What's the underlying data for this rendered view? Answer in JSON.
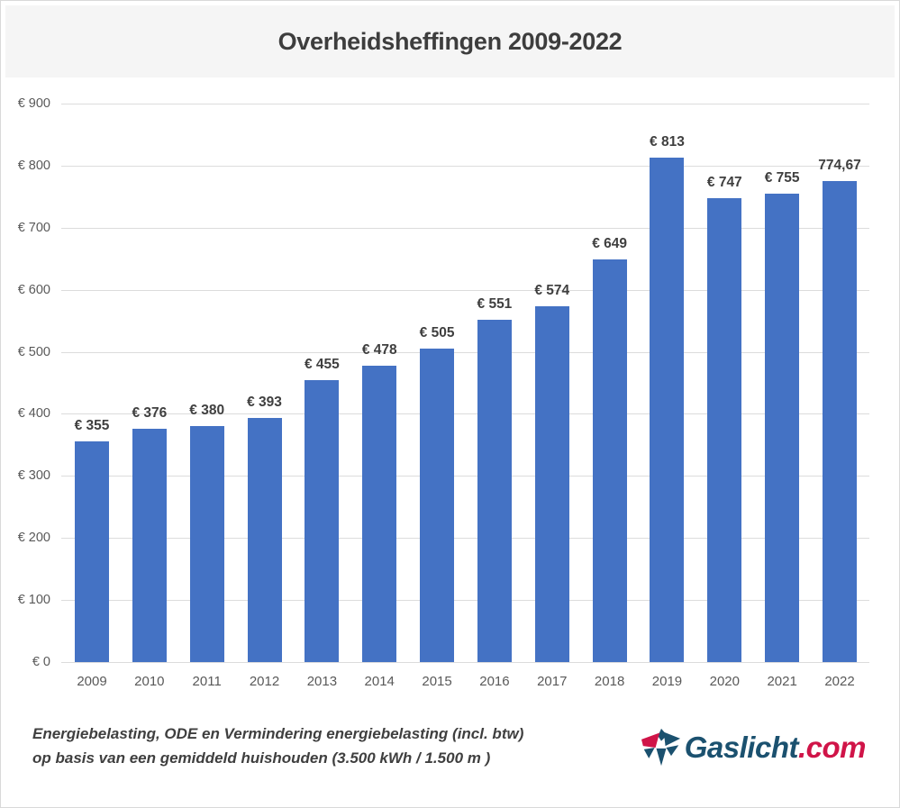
{
  "page": {
    "title": "Overheidsheffingen 2009-2022"
  },
  "chart_data": {
    "type": "bar",
    "title": "Overheidsheffingen 2009-2022",
    "categories": [
      "2009",
      "2010",
      "2011",
      "2012",
      "2013",
      "2014",
      "2015",
      "2016",
      "2017",
      "2018",
      "2019",
      "2020",
      "2021",
      "2022"
    ],
    "values": [
      355,
      376,
      380,
      393,
      455,
      478,
      505,
      551,
      574,
      649,
      813,
      747,
      755,
      774.67
    ],
    "bar_labels": [
      "€ 355",
      "€ 376",
      "€ 380",
      "€ 393",
      "€ 455",
      "€ 478",
      "€ 505",
      "€ 551",
      "€ 574",
      "€ 649",
      "€ 813",
      "€ 747",
      "€ 755",
      "774,67"
    ],
    "y_tick_values": [
      0,
      100,
      200,
      300,
      400,
      500,
      600,
      700,
      800,
      900
    ],
    "y_tick_labels": [
      "€ 0",
      "€ 100",
      "€ 200",
      "€ 300",
      "€ 400",
      "€ 500",
      "€ 600",
      "€ 700",
      "€ 800",
      "€ 900"
    ],
    "xlabel": "",
    "ylabel": "",
    "ylim": [
      0,
      900
    ],
    "grid": true,
    "legend": false,
    "bar_color": "#4472c4"
  },
  "footer": {
    "line1": "Energiebelasting, ODE en Vermindering energiebelasting (incl. btw)",
    "line2": "op basis van een gemiddeld huishouden (3.500 kWh / 1.500 m )"
  },
  "logo": {
    "name": "Gaslicht",
    "tld": ".com",
    "icon": "gaslicht-pinwheel-flame-icon",
    "blue": "#1b516f",
    "red": "#d01448"
  },
  "colors": {
    "title_band": "#f5f5f5",
    "gridline": "#dcdcdc",
    "bar": "#4472c4",
    "axis_text": "#595959",
    "label_text": "#3f3f3f"
  }
}
